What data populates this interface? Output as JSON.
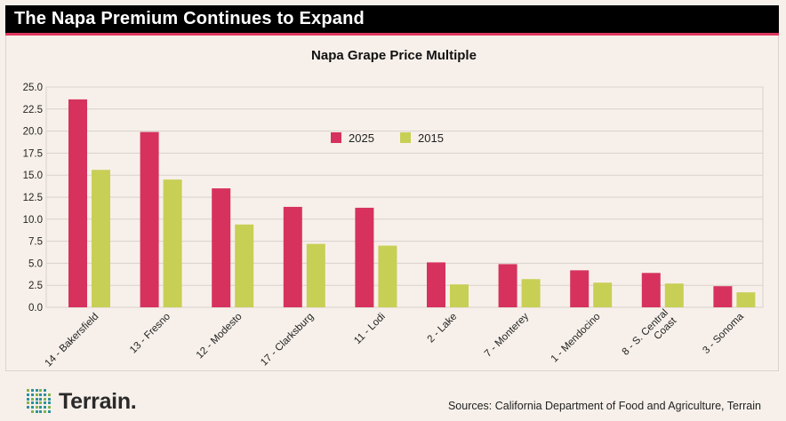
{
  "header": {
    "title": "The Napa Premium Continues to Expand"
  },
  "chart_data": {
    "type": "bar",
    "title": "Napa Grape Price Multiple",
    "categories": [
      "14 - Bakersfield",
      "13 - Fresno",
      "12 - Modesto",
      "17 - Clarksburg",
      "11 - Lodi",
      "2 - Lake",
      "7 - Monterey",
      "1 - Mendocino",
      "8 - S. Central Coast",
      "3 - Sonoma"
    ],
    "category_lines": [
      [
        "14 - Bakersfield"
      ],
      [
        "13 - Fresno"
      ],
      [
        "12 - Modesto"
      ],
      [
        "17 - Clarksburg"
      ],
      [
        "11 - Lodi"
      ],
      [
        "2 - Lake"
      ],
      [
        "7 - Monterey"
      ],
      [
        "1 - Mendocino"
      ],
      [
        "8 - S. Central",
        "Coast"
      ],
      [
        "3 - Sonoma"
      ]
    ],
    "series": [
      {
        "name": "2025",
        "color": "#d6325d",
        "values": [
          23.6,
          19.9,
          13.5,
          11.4,
          11.3,
          5.1,
          4.9,
          4.2,
          3.9,
          2.4
        ]
      },
      {
        "name": "2015",
        "color": "#c8cf55",
        "values": [
          15.6,
          14.5,
          9.4,
          7.2,
          7.0,
          2.6,
          3.2,
          2.8,
          2.7,
          1.7
        ]
      }
    ],
    "ylim": [
      0,
      25
    ],
    "yticks": [
      "0.0",
      "2.5",
      "5.0",
      "7.5",
      "10.0",
      "12.5",
      "15.0",
      "17.5",
      "20.0",
      "22.5",
      "25.0"
    ],
    "xlabel": "",
    "ylabel": "",
    "grid": true,
    "legend_position": "top-center"
  },
  "footer": {
    "logo_text": "Terrain.",
    "source": "Sources: California Department of Food and Agriculture, Terrain"
  },
  "colors": {
    "header_bg": "#000000",
    "header_accent": "#e0375f",
    "background": "#f7f0ea",
    "logo_teal": "#2a8f9a",
    "logo_green": "#7fb24a"
  }
}
